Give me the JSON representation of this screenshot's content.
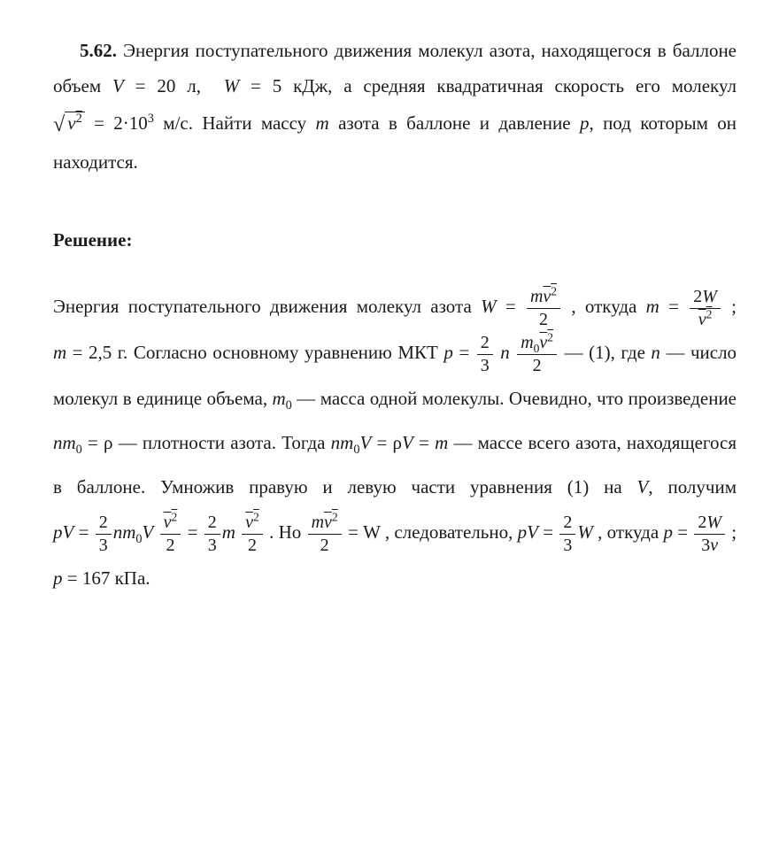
{
  "colors": {
    "text": "#1a1a1a",
    "background": "#ffffff",
    "rule": "#1a1a1a"
  },
  "typography": {
    "family": "Times New Roman",
    "base_size_pt": 16,
    "line_height_body": 1.9,
    "line_height_solution": 2.4
  },
  "problem": {
    "number": "5.62.",
    "t1": "Энергия поступательного движения молекул азота, находящегося в баллоне объем ",
    "eqV": "V = 20 л,",
    "eqW": "W = 5 кДж,",
    "t2": " а средняя квадратичная скорость его молекул ",
    "eqv": "= 2·10",
    "eqv_exp": "3",
    "eqv_unit": " м/с.",
    "t3": " Найти массу ",
    "m": "m",
    "t4": " азота в баллоне и давление ",
    "p": "p",
    "t5": ", под которым он находится."
  },
  "solution_header": "Решение:",
  "solution": {
    "s1": "Энергия поступательного движения молекул азота ",
    "W": "W",
    "eq": " = ",
    "frac_mv2_2_num_m": "m",
    "two": "2",
    "s2": ", откуда ",
    "m": "m",
    "frac_2W_v2_num": "2W",
    "semicolon": "; ",
    "m_val": "m = 2,5 г.",
    "s3": " Согласно основному уравнению МКТ ",
    "p": "p",
    "two_thirds_num": "2",
    "two_thirds_den": "3",
    "n": "n",
    "m0": "m",
    "sub0": "0",
    "dash_eq1": " — (1), где ",
    "s4": " — число молекул в единице объема, ",
    "s5": " — масса одной молекулы. Очевидно, что произведение ",
    "nm0_rho": " = ρ",
    "s6": " — плотности азота. Тогда ",
    "rhoVm": "V = ρV = m",
    "s7": " — массе всего азота, находящегося в баллоне. Умножив правую и левую части уравнения (1) на ",
    "V": "V",
    "s8": ", получим ",
    "pV": "pV",
    "s9": ". Но ",
    "eqWend": " = W",
    "s10": ", следовательно, ",
    "s11": ", откуда ",
    "frac_2W_3v_num": "2W",
    "frac_2W_3v_den": "3v",
    "p_val": "p = 167 кПа.",
    "v2": "v",
    "sup2": "2"
  }
}
